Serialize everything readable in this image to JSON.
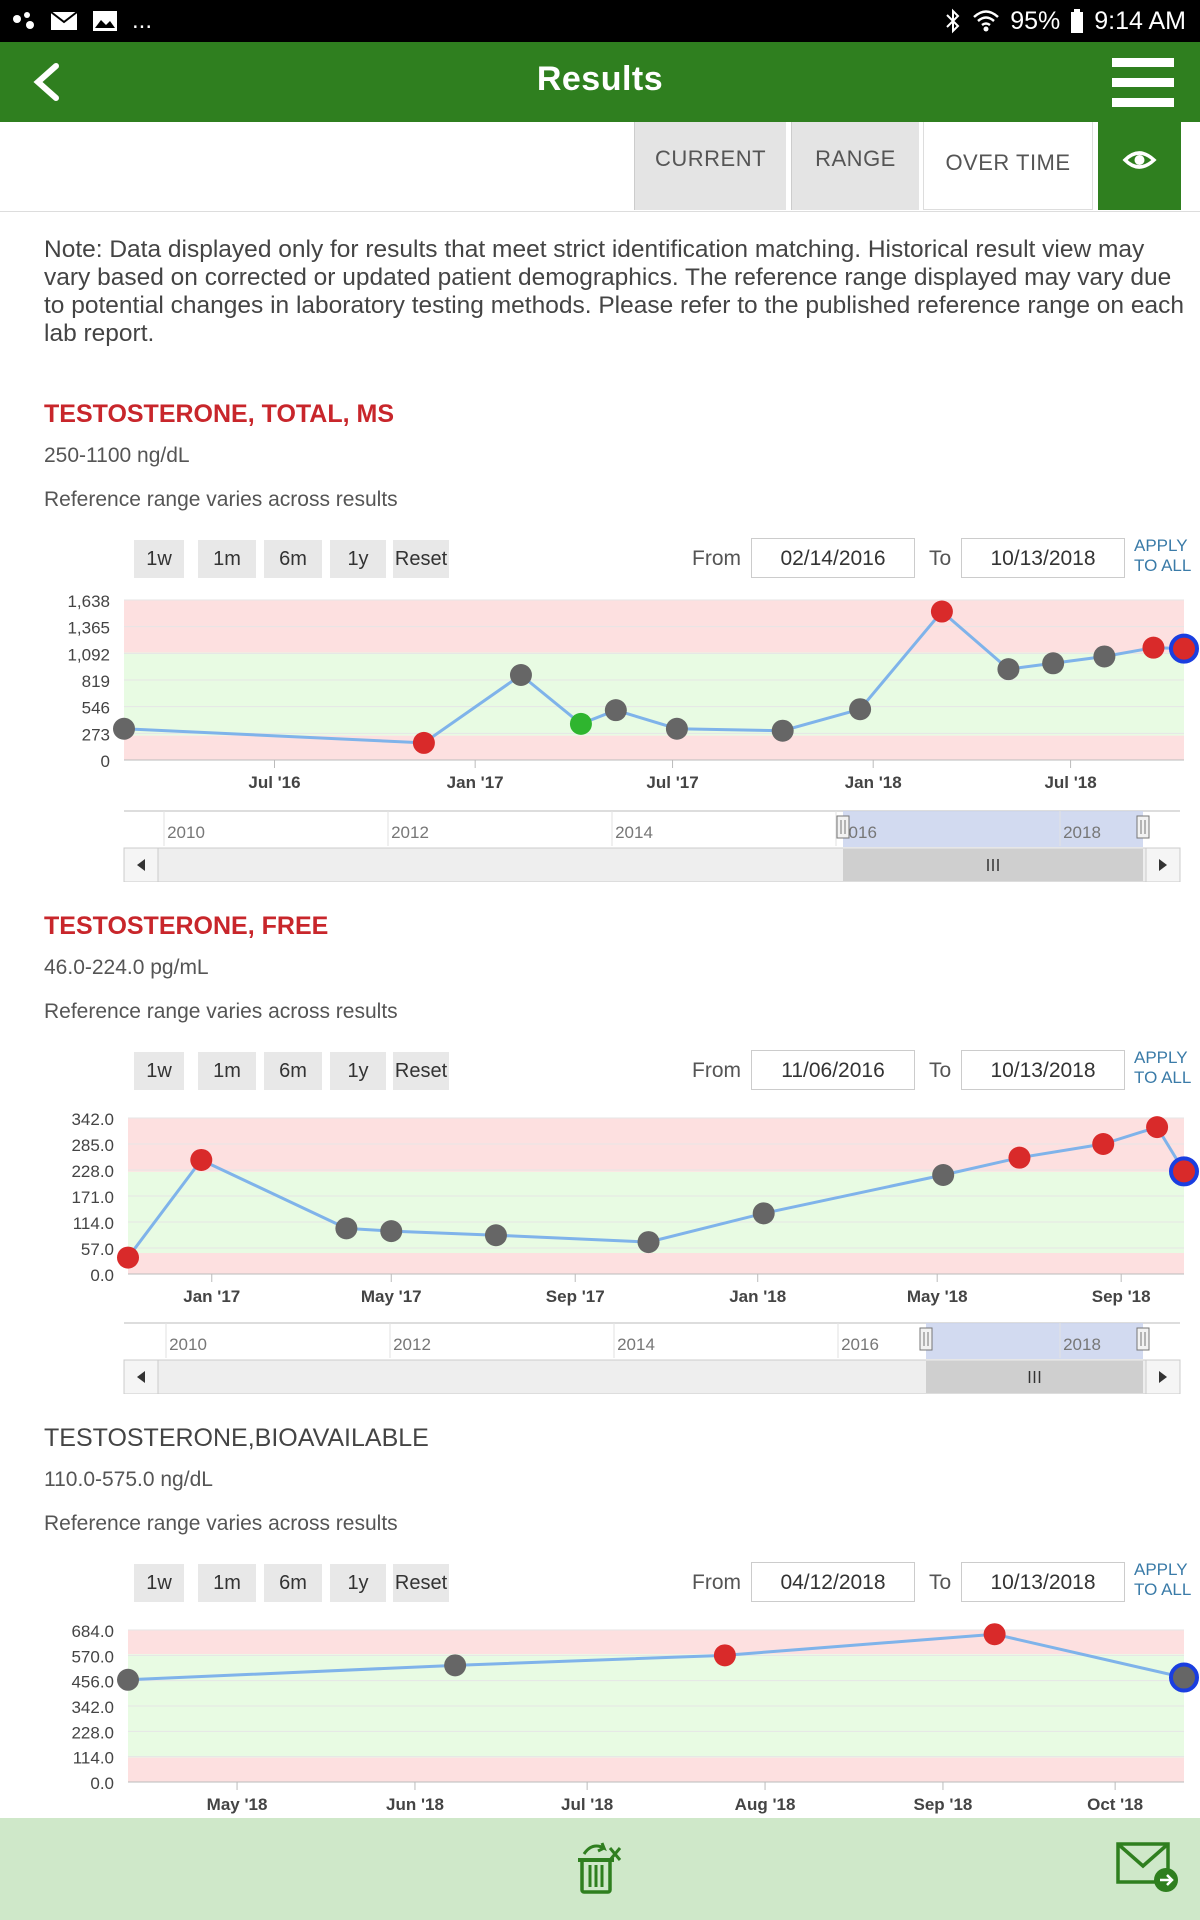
{
  "status_bar": {
    "battery": "95%",
    "time": "9:14 AM",
    "overflow": "...",
    "icons": [
      "notification-dots-icon",
      "mail-icon",
      "image-icon",
      "bluetooth-icon",
      "wifi-icon",
      "battery-icon"
    ]
  },
  "app_bar": {
    "title": "Results",
    "back_icon": "chevron-left-icon",
    "menu_icon": "hamburger-menu-icon"
  },
  "tabs": [
    {
      "label": "CURRENT",
      "active": false
    },
    {
      "label": "RANGE",
      "active": false
    },
    {
      "label": "OVER TIME",
      "active": true
    }
  ],
  "eye_icon": "eye-icon",
  "note": "Note: Data displayed only for results that meet strict identification matching. Historical result view may vary based on corrected or updated patient demographics. The reference range displayed may vary due to potential changes in laboratory testing methods. Please refer to the published reference range on each lab report.",
  "colors": {
    "accent_green": "#2f7f1f",
    "title_red": "#c8262b",
    "point_red": "#d92a2a",
    "point_gray": "#666666",
    "point_green": "#2fb52f",
    "line_blue": "#7fb3ea",
    "band_red": "#fde0e0",
    "band_green": "#e8fbe3",
    "navigator_blue": "#cdd6ee"
  },
  "zoom_buttons": [
    "1w",
    "1m",
    "6m",
    "1y",
    "Reset"
  ],
  "from_label": "From",
  "to_label": "To",
  "apply_line1": "APPLY",
  "apply_line2": "TO ALL",
  "sections": [
    {
      "title": "TESTOSTERONE, TOTAL, MS",
      "range": "250-1100 ng/dL",
      "note": "Reference range varies across results",
      "from": "02/14/2016",
      "to": "10/13/2018",
      "chart_data": {
        "type": "line",
        "y_ticks": [
          "1,638",
          "1,365",
          "1,092",
          "819",
          "546",
          "273",
          "0"
        ],
        "ylim": [
          0,
          1638
        ],
        "reference_range": [
          250,
          1100
        ],
        "x_ticks": [
          "Jul '16",
          "Jan '17",
          "Jul '17",
          "Jan '18",
          "Jul '18"
        ],
        "points": [
          {
            "date": "2016-02-14",
            "value": 320,
            "status": "normal"
          },
          {
            "date": "2016-11-15",
            "value": 175,
            "status": "low"
          },
          {
            "date": "2017-02-12",
            "value": 870,
            "status": "normal"
          },
          {
            "date": "2017-04-08",
            "value": 370,
            "status": "in-range"
          },
          {
            "date": "2017-05-10",
            "value": 510,
            "status": "normal"
          },
          {
            "date": "2017-07-05",
            "value": 320,
            "status": "normal"
          },
          {
            "date": "2017-10-10",
            "value": 300,
            "status": "normal"
          },
          {
            "date": "2017-12-20",
            "value": 520,
            "status": "normal"
          },
          {
            "date": "2018-03-05",
            "value": 1520,
            "status": "high"
          },
          {
            "date": "2018-05-05",
            "value": 930,
            "status": "normal"
          },
          {
            "date": "2018-06-15",
            "value": 990,
            "status": "normal"
          },
          {
            "date": "2018-08-01",
            "value": 1060,
            "status": "normal"
          },
          {
            "date": "2018-09-15",
            "value": 1150,
            "status": "high"
          },
          {
            "date": "2018-10-13",
            "value": 1140,
            "status": "high",
            "selected": true
          }
        ],
        "navigator_labels": [
          "2010",
          "2012",
          "2014",
          "2016",
          "2018"
        ]
      }
    },
    {
      "title": "TESTOSTERONE, FREE",
      "range": "46.0-224.0 pg/mL",
      "note": "Reference range varies across results",
      "from": "11/06/2016",
      "to": "10/13/2018",
      "chart_data": {
        "type": "line",
        "y_ticks": [
          "342.0",
          "285.0",
          "228.0",
          "171.0",
          "114.0",
          "57.0",
          "0.0"
        ],
        "ylim": [
          0,
          342
        ],
        "reference_range": [
          46,
          224
        ],
        "x_ticks": [
          "Jan '17",
          "May '17",
          "Sep '17",
          "Jan '18",
          "May '18",
          "Sep '18"
        ],
        "points": [
          {
            "date": "2016-11-06",
            "value": 36,
            "status": "low"
          },
          {
            "date": "2016-12-25",
            "value": 250,
            "status": "high"
          },
          {
            "date": "2017-04-01",
            "value": 100,
            "status": "normal"
          },
          {
            "date": "2017-05-01",
            "value": 94,
            "status": "normal"
          },
          {
            "date": "2017-07-10",
            "value": 85,
            "status": "normal"
          },
          {
            "date": "2017-10-20",
            "value": 70,
            "status": "normal"
          },
          {
            "date": "2018-01-05",
            "value": 133,
            "status": "normal"
          },
          {
            "date": "2018-05-05",
            "value": 217,
            "status": "normal"
          },
          {
            "date": "2018-06-25",
            "value": 255,
            "status": "high"
          },
          {
            "date": "2018-08-20",
            "value": 285,
            "status": "high"
          },
          {
            "date": "2018-09-25",
            "value": 322,
            "status": "high"
          },
          {
            "date": "2018-10-13",
            "value": 225,
            "status": "high",
            "selected": true
          }
        ],
        "navigator_labels": [
          "2010",
          "2012",
          "2014",
          "2016",
          "2018"
        ]
      }
    },
    {
      "title": "TESTOSTERONE,BIOAVAILABLE",
      "range": "110.0-575.0 ng/dL",
      "note": "Reference range varies across results",
      "from": "04/12/2018",
      "to": "10/13/2018",
      "chart_data": {
        "type": "line",
        "y_ticks": [
          "684.0",
          "570.0",
          "456.0",
          "342.0",
          "228.0",
          "114.0",
          "0.0"
        ],
        "ylim": [
          0,
          684
        ],
        "reference_range": [
          110,
          575
        ],
        "x_ticks": [
          "May '18",
          "Jun '18",
          "Jul '18",
          "Aug '18",
          "Sep '18",
          "Oct '18"
        ],
        "points": [
          {
            "date": "2018-04-12",
            "value": 460,
            "status": "normal"
          },
          {
            "date": "2018-06-08",
            "value": 525,
            "status": "normal"
          },
          {
            "date": "2018-07-25",
            "value": 570,
            "status": "high"
          },
          {
            "date": "2018-09-10",
            "value": 665,
            "status": "high"
          },
          {
            "date": "2018-10-13",
            "value": 470,
            "status": "normal",
            "selected": true
          }
        ]
      }
    }
  ],
  "bottom_bar": {
    "left_icon": "recycle-bin-icon",
    "right_icon": "mail-send-icon"
  }
}
